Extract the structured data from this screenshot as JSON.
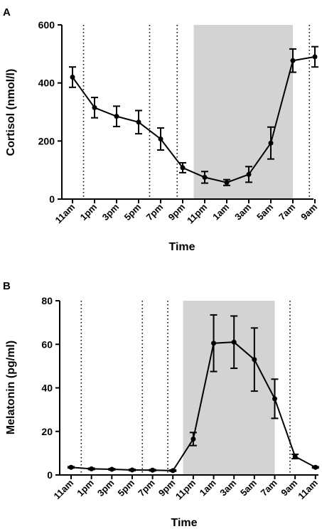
{
  "chart_data": [
    {
      "panel": "A",
      "type": "line",
      "xlabel": "Time",
      "ylabel": "Cortisol (nmol/l)",
      "ylim": [
        0,
        600
      ],
      "yticks": [
        "0",
        "200",
        "400",
        "600"
      ],
      "xticks": [
        "11am",
        "1pm",
        "3pm",
        "5pm",
        "7pm",
        "9pm",
        "11pm",
        "1am",
        "3am",
        "5am",
        "7am",
        "9am"
      ],
      "series": [
        {
          "values": [
            420,
            315,
            285,
            265,
            207,
            108,
            75,
            57,
            85,
            193,
            477,
            490
          ],
          "errors": [
            35,
            35,
            35,
            40,
            38,
            17,
            20,
            10,
            27,
            55,
            40,
            35
          ]
        }
      ],
      "vlines_dotted": [
        "12pm",
        "6pm",
        "8:30pm",
        "8:30am"
      ],
      "shaded_band": [
        "10pm",
        "7am"
      ],
      "colors": {
        "line": "#000000",
        "shade": "#d3d3d3"
      }
    },
    {
      "panel": "B",
      "type": "line",
      "xlabel": "Time",
      "ylabel": "Melatonin (pg/ml)",
      "ylim": [
        0,
        80
      ],
      "yticks": [
        "0",
        "20",
        "40",
        "60",
        "80"
      ],
      "xticks": [
        "11am",
        "1pm",
        "3pm",
        "5pm",
        "7pm",
        "9pm",
        "11pm",
        "1am",
        "3am",
        "5am",
        "7am",
        "9am",
        "11am"
      ],
      "series": [
        {
          "values": [
            3.5,
            2.8,
            2.6,
            2.3,
            2.2,
            2.0,
            16.5,
            60.5,
            61.0,
            53.0,
            35.0,
            8.5,
            3.5
          ],
          "errors": [
            0.3,
            0.3,
            0.3,
            0.3,
            0.3,
            0.3,
            3.0,
            13.0,
            12.0,
            14.5,
            9.0,
            1.0,
            0.3
          ]
        }
      ],
      "vlines_dotted": [
        "12pm",
        "6pm",
        "8:30pm",
        "8:30am"
      ],
      "shaded_band": [
        "10pm",
        "7am"
      ],
      "colors": {
        "line": "#000000",
        "shade": "#d3d3d3"
      }
    }
  ]
}
